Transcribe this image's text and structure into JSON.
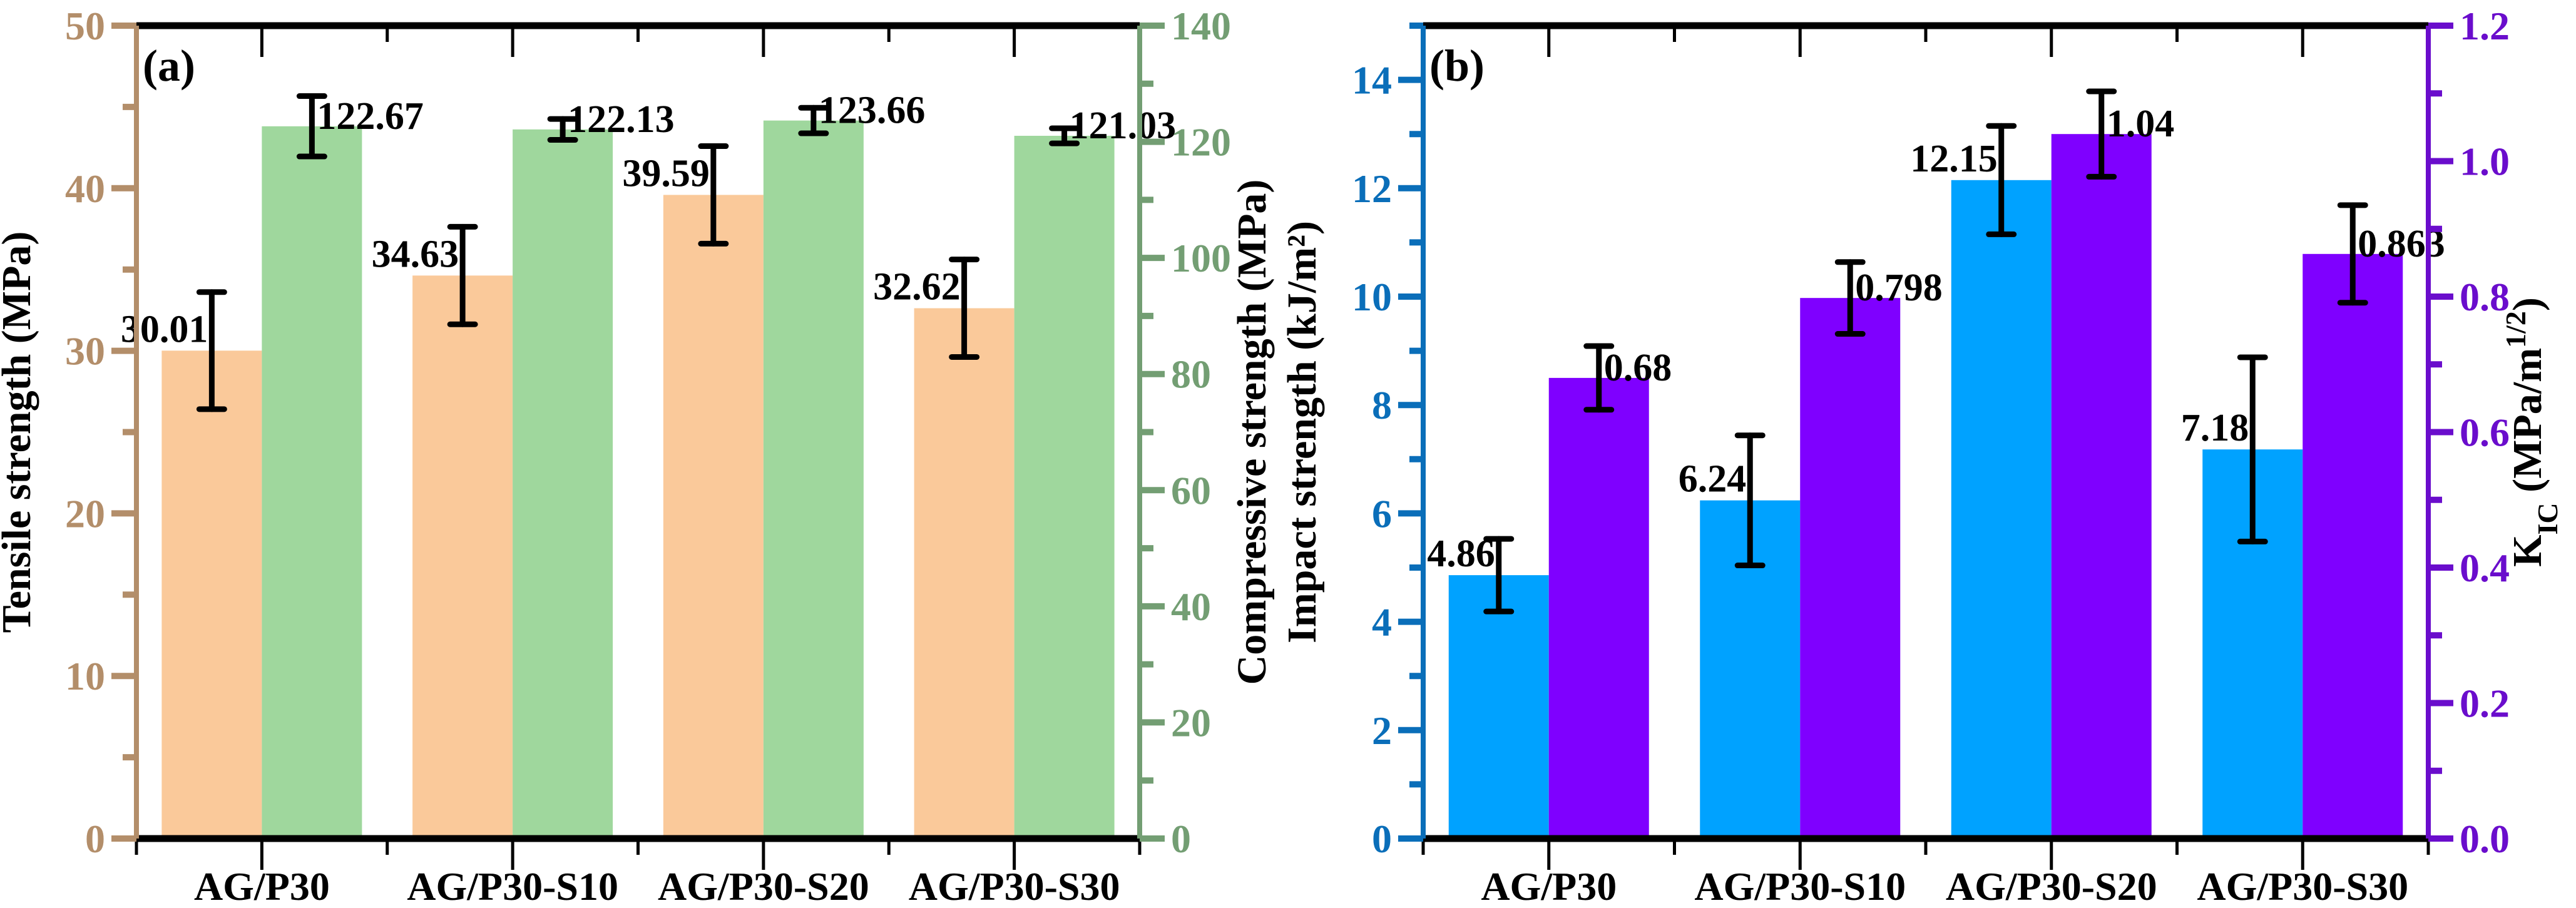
{
  "chart_data": [
    {
      "panel_label": "(a)",
      "type": "bar",
      "categories": [
        "AG/P30",
        "AG/P30-S10",
        "AG/P30-S20",
        "AG/P30-S30"
      ],
      "series": [
        {
          "name": "Tensile strength (MPa)",
          "axis": "left",
          "color": "#FAC99A",
          "values": [
            30.01,
            34.63,
            39.59,
            32.62
          ],
          "labels": [
            "30.01",
            "34.63",
            "39.59",
            "32.62"
          ],
          "errors": [
            3.6,
            3.0,
            3.0,
            3.0
          ]
        },
        {
          "name": "Compressive strength (MPa)",
          "axis": "right",
          "color": "#9FD79D",
          "values": [
            122.67,
            122.13,
            123.66,
            121.03
          ],
          "labels": [
            "122.67",
            "122.13",
            "123.66",
            "121.03"
          ],
          "errors": [
            5.2,
            1.8,
            2.2,
            1.3
          ]
        }
      ],
      "left_axis": {
        "label": "Tensile strength (MPa)",
        "range": [
          0,
          50
        ],
        "major": 10,
        "minor": 5,
        "ticks": [
          "0",
          "10",
          "20",
          "30",
          "40",
          "50"
        ],
        "color": "#B38E6A"
      },
      "right_axis": {
        "label": "Compressive strength (MPa)",
        "range": [
          0,
          140
        ],
        "major": 20,
        "minor": 10,
        "ticks": [
          "0",
          "20",
          "40",
          "60",
          "80",
          "100",
          "120",
          "140"
        ],
        "color": "#739E73"
      },
      "grid": false
    },
    {
      "panel_label": "(b)",
      "type": "bar",
      "categories": [
        "AG/P30",
        "AG/P30-S10",
        "AG/P30-S20",
        "AG/P30-S30"
      ],
      "series": [
        {
          "name": "Impact strength (kJ/m²)",
          "axis": "left",
          "color": "#00A2FF",
          "values": [
            4.86,
            6.24,
            12.15,
            7.18
          ],
          "labels": [
            "4.86",
            "6.24",
            "12.15",
            "7.18"
          ],
          "errors": [
            0.67,
            1.2,
            1.0,
            1.7
          ]
        },
        {
          "name": "KIC (MPa/m1/2)",
          "axis": "right",
          "color": "#7F00FF",
          "values": [
            0.68,
            0.798,
            1.04,
            0.863
          ],
          "labels": [
            "0.68",
            "0.798",
            "1.04",
            "0.863"
          ],
          "errors": [
            0.047,
            0.053,
            0.063,
            0.072
          ]
        }
      ],
      "left_axis": {
        "label": "Impact strength (kJ/m²)",
        "range": [
          0,
          15
        ],
        "major": 2,
        "minor": 1,
        "ticks": [
          "0",
          "2",
          "4",
          "6",
          "8",
          "10",
          "12",
          "14"
        ],
        "color": "#0A6EB9"
      },
      "right_axis": {
        "label_main": "K",
        "label_sub": "IC",
        "label_rest": " (MPa/m",
        "label_sup": "1/2",
        "label_end": ")",
        "range": [
          0,
          1.2
        ],
        "major": 0.2,
        "minor": 0.1,
        "ticks": [
          "0.0",
          "0.2",
          "0.4",
          "0.6",
          "0.8",
          "1.0",
          "1.2"
        ],
        "color": "#6A0DCC"
      },
      "grid": false
    }
  ]
}
